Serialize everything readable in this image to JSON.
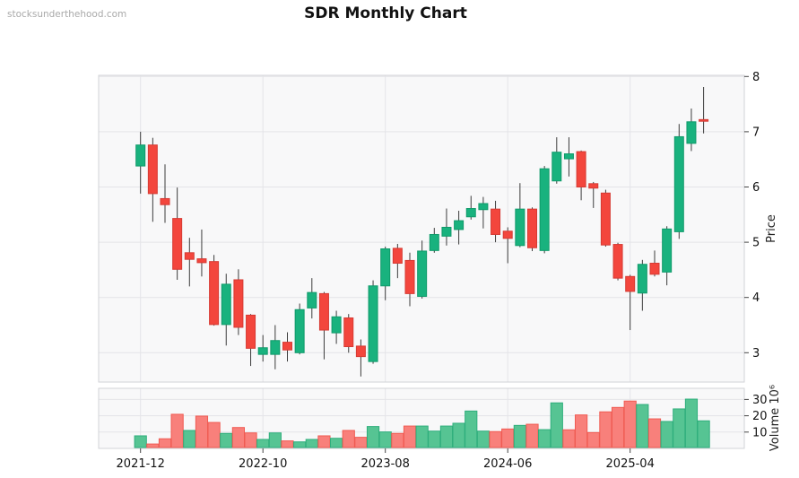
{
  "title": "SDR Monthly Chart",
  "watermark": {
    "text": "stocksunderthehood.com"
  },
  "price_axis": {
    "label": "Price",
    "ticks": [
      8,
      7,
      6,
      5,
      4,
      3
    ]
  },
  "volume_axis": {
    "label": "Volume  10⁶",
    "ticks": [
      30,
      20,
      10
    ]
  },
  "x_axis": {
    "ticks": [
      {
        "label": "2021-12",
        "month": 0
      },
      {
        "label": "2022-10",
        "month": 10
      },
      {
        "label": "2023-08",
        "month": 20
      },
      {
        "label": "2024-06",
        "month": 30
      },
      {
        "label": "2025-04",
        "month": 40
      }
    ]
  },
  "colors": {
    "up": "#19b27e",
    "up_border": "#0f9a6a",
    "down": "#f3463d",
    "down_border": "#d63a33",
    "wick": "#3c3c3c",
    "vol_up": "#56c493",
    "vol_up_border": "#2fae7c",
    "vol_down": "#f8807b",
    "vol_down_border": "#f05b53",
    "panel_bg": "#f8f8f9",
    "grid": "#e4e4e8",
    "border": "#d2d3d7",
    "tick_text": "#111111",
    "axis_label_text": "#222222"
  },
  "chart_data": {
    "type": "candlestick",
    "title": "SDR Monthly Chart",
    "ylabel": "Price",
    "ylabel2": "Volume  10⁶",
    "price_range": [
      2.5,
      8.0
    ],
    "volume_range_millions": [
      0,
      37
    ],
    "grid": true,
    "legend": "none",
    "candles": [
      {
        "d": "2021-12",
        "o": 6.38,
        "h": 7.0,
        "l": 5.88,
        "c": 6.76,
        "v": 7.7,
        "vd": "up"
      },
      {
        "d": "2022-01",
        "o": 6.76,
        "h": 6.89,
        "l": 5.37,
        "c": 5.88,
        "v": 2.7,
        "vd": "down"
      },
      {
        "d": "2022-02",
        "o": 5.79,
        "h": 6.41,
        "l": 5.35,
        "c": 5.68,
        "v": 5.9,
        "vd": "down"
      },
      {
        "d": "2022-03",
        "o": 5.43,
        "h": 5.99,
        "l": 4.32,
        "c": 4.51,
        "v": 20.9,
        "vd": "down"
      },
      {
        "d": "2022-04",
        "o": 4.81,
        "h": 5.08,
        "l": 4.2,
        "c": 4.69,
        "v": 11.0,
        "vd": "up"
      },
      {
        "d": "2022-05",
        "o": 4.7,
        "h": 5.23,
        "l": 4.38,
        "c": 4.63,
        "v": 19.8,
        "vd": "down"
      },
      {
        "d": "2022-06",
        "o": 4.65,
        "h": 4.77,
        "l": 3.49,
        "c": 3.51,
        "v": 15.9,
        "vd": "down"
      },
      {
        "d": "2022-07",
        "o": 3.51,
        "h": 4.43,
        "l": 3.13,
        "c": 4.24,
        "v": 9.2,
        "vd": "up"
      },
      {
        "d": "2022-08",
        "o": 4.32,
        "h": 4.51,
        "l": 3.32,
        "c": 3.46,
        "v": 12.8,
        "vd": "down"
      },
      {
        "d": "2022-09",
        "o": 3.68,
        "h": 3.7,
        "l": 2.76,
        "c": 3.08,
        "v": 9.5,
        "vd": "down"
      },
      {
        "d": "2022-10",
        "o": 2.97,
        "h": 3.32,
        "l": 2.84,
        "c": 3.09,
        "v": 5.5,
        "vd": "up"
      },
      {
        "d": "2022-11",
        "o": 2.97,
        "h": 3.5,
        "l": 2.7,
        "c": 3.22,
        "v": 9.5,
        "vd": "up"
      },
      {
        "d": "2022-12",
        "o": 3.19,
        "h": 3.37,
        "l": 2.84,
        "c": 3.05,
        "v": 4.6,
        "vd": "down"
      },
      {
        "d": "2023-01",
        "o": 3.0,
        "h": 3.89,
        "l": 2.97,
        "c": 3.78,
        "v": 4.0,
        "vd": "up"
      },
      {
        "d": "2023-02",
        "o": 3.81,
        "h": 4.35,
        "l": 3.62,
        "c": 4.09,
        "v": 5.5,
        "vd": "up"
      },
      {
        "d": "2023-03",
        "o": 4.07,
        "h": 4.1,
        "l": 2.88,
        "c": 3.41,
        "v": 7.7,
        "vd": "down"
      },
      {
        "d": "2023-04",
        "o": 3.36,
        "h": 3.76,
        "l": 3.16,
        "c": 3.65,
        "v": 6.2,
        "vd": "up"
      },
      {
        "d": "2023-05",
        "o": 3.63,
        "h": 3.7,
        "l": 3.0,
        "c": 3.11,
        "v": 11.0,
        "vd": "down"
      },
      {
        "d": "2023-06",
        "o": 3.12,
        "h": 3.24,
        "l": 2.57,
        "c": 2.93,
        "v": 6.8,
        "vd": "down"
      },
      {
        "d": "2023-07",
        "o": 2.84,
        "h": 4.31,
        "l": 2.8,
        "c": 4.21,
        "v": 13.4,
        "vd": "up"
      },
      {
        "d": "2023-08",
        "o": 4.21,
        "h": 4.92,
        "l": 3.95,
        "c": 4.88,
        "v": 10.1,
        "vd": "up"
      },
      {
        "d": "2023-09",
        "o": 4.89,
        "h": 4.97,
        "l": 4.35,
        "c": 4.62,
        "v": 9.2,
        "vd": "down"
      },
      {
        "d": "2023-10",
        "o": 4.67,
        "h": 4.81,
        "l": 3.84,
        "c": 4.07,
        "v": 13.7,
        "vd": "down"
      },
      {
        "d": "2023-11",
        "o": 4.02,
        "h": 5.03,
        "l": 3.98,
        "c": 4.84,
        "v": 13.7,
        "vd": "up"
      },
      {
        "d": "2023-12",
        "o": 4.85,
        "h": 5.26,
        "l": 4.81,
        "c": 5.14,
        "v": 10.6,
        "vd": "up"
      },
      {
        "d": "2024-01",
        "o": 5.11,
        "h": 5.61,
        "l": 4.94,
        "c": 5.27,
        "v": 13.7,
        "vd": "up"
      },
      {
        "d": "2024-02",
        "o": 5.23,
        "h": 5.57,
        "l": 4.96,
        "c": 5.39,
        "v": 15.4,
        "vd": "up"
      },
      {
        "d": "2024-03",
        "o": 5.46,
        "h": 5.84,
        "l": 5.41,
        "c": 5.61,
        "v": 22.9,
        "vd": "up"
      },
      {
        "d": "2024-04",
        "o": 5.59,
        "h": 5.82,
        "l": 5.25,
        "c": 5.7,
        "v": 10.6,
        "vd": "up"
      },
      {
        "d": "2024-05",
        "o": 5.6,
        "h": 5.75,
        "l": 5.0,
        "c": 5.14,
        "v": 10.3,
        "vd": "down"
      },
      {
        "d": "2024-06",
        "o": 5.2,
        "h": 5.27,
        "l": 4.62,
        "c": 5.07,
        "v": 11.9,
        "vd": "down"
      },
      {
        "d": "2024-07",
        "o": 4.94,
        "h": 6.07,
        "l": 4.91,
        "c": 5.6,
        "v": 14.1,
        "vd": "up"
      },
      {
        "d": "2024-08",
        "o": 5.6,
        "h": 5.63,
        "l": 4.84,
        "c": 4.9,
        "v": 14.8,
        "vd": "down"
      },
      {
        "d": "2024-09",
        "o": 4.85,
        "h": 6.38,
        "l": 4.8,
        "c": 6.33,
        "v": 11.5,
        "vd": "up"
      },
      {
        "d": "2024-10",
        "o": 6.11,
        "h": 6.9,
        "l": 6.06,
        "c": 6.63,
        "v": 27.9,
        "vd": "up"
      },
      {
        "d": "2024-11",
        "o": 6.51,
        "h": 6.9,
        "l": 6.19,
        "c": 6.6,
        "v": 11.4,
        "vd": "down"
      },
      {
        "d": "2024-12",
        "o": 6.64,
        "h": 6.66,
        "l": 5.76,
        "c": 6.0,
        "v": 20.5,
        "vd": "down"
      },
      {
        "d": "2025-01",
        "o": 6.06,
        "h": 6.09,
        "l": 5.62,
        "c": 5.98,
        "v": 9.7,
        "vd": "down"
      },
      {
        "d": "2025-02",
        "o": 5.89,
        "h": 5.95,
        "l": 4.92,
        "c": 4.95,
        "v": 22.4,
        "vd": "down"
      },
      {
        "d": "2025-03",
        "o": 4.96,
        "h": 4.99,
        "l": 4.31,
        "c": 4.35,
        "v": 25.1,
        "vd": "down"
      },
      {
        "d": "2025-04",
        "o": 4.38,
        "h": 4.41,
        "l": 3.41,
        "c": 4.11,
        "v": 29.0,
        "vd": "down"
      },
      {
        "d": "2025-05",
        "o": 4.08,
        "h": 4.68,
        "l": 3.76,
        "c": 4.6,
        "v": 26.9,
        "vd": "up"
      },
      {
        "d": "2025-06",
        "o": 4.62,
        "h": 4.85,
        "l": 4.38,
        "c": 4.42,
        "v": 18.1,
        "vd": "down"
      },
      {
        "d": "2025-07",
        "o": 4.46,
        "h": 5.29,
        "l": 4.22,
        "c": 5.24,
        "v": 16.5,
        "vd": "up"
      },
      {
        "d": "2025-08",
        "o": 5.19,
        "h": 7.14,
        "l": 5.06,
        "c": 6.91,
        "v": 24.2,
        "vd": "up"
      },
      {
        "d": "2025-09",
        "o": 6.79,
        "h": 7.42,
        "l": 6.65,
        "c": 7.18,
        "v": 30.2,
        "vd": "up"
      },
      {
        "d": "2025-10",
        "o": 7.22,
        "h": 7.81,
        "l": 6.97,
        "c": 7.19,
        "v": 16.9,
        "vd": "up"
      }
    ]
  }
}
